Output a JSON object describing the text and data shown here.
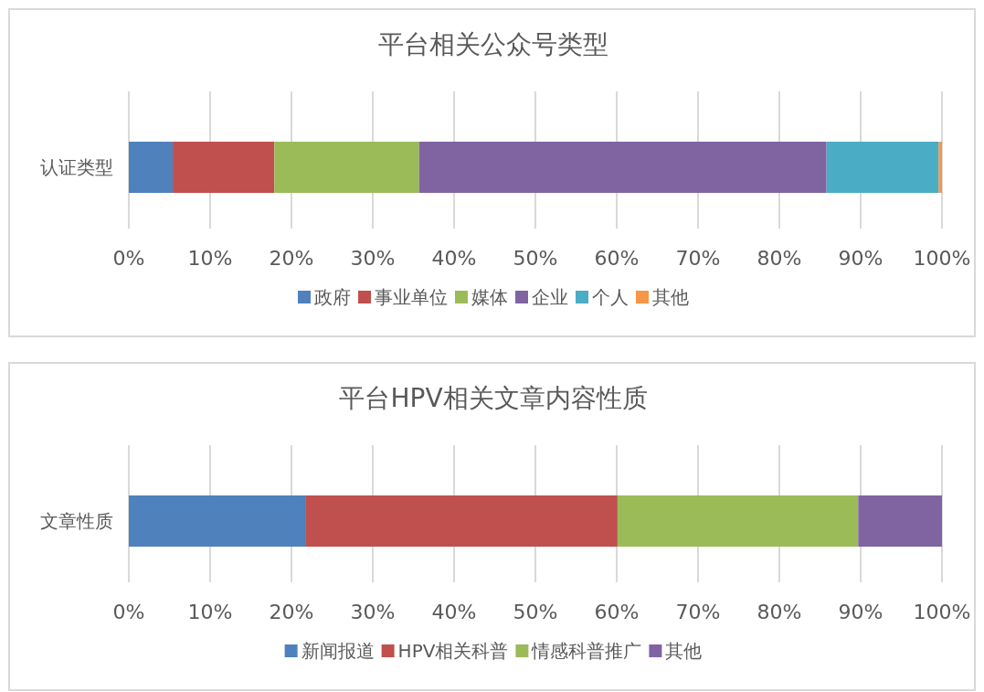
{
  "chart_data": [
    {
      "type": "bar",
      "orientation": "horizontal",
      "stacked": true,
      "title": "平台相关公众号类型",
      "categories": [
        "认证类型"
      ],
      "series": [
        {
          "name": "政府",
          "color": "#4f81bd",
          "values": [
            5.4
          ]
        },
        {
          "name": "事业单位",
          "color": "#c0504d",
          "values": [
            12.5
          ]
        },
        {
          "name": "媒体",
          "color": "#9bbb59",
          "values": [
            17.8
          ]
        },
        {
          "name": "企业",
          "color": "#8064a2",
          "values": [
            50.1
          ]
        },
        {
          "name": "个人",
          "color": "#4bacc6",
          "values": [
            13.8
          ]
        },
        {
          "name": "其他",
          "color": "#f79646",
          "values": [
            0.4
          ]
        }
      ],
      "xlim": [
        0,
        100
      ],
      "xticks": [
        {
          "value": 0,
          "label": "0%"
        },
        {
          "value": 10,
          "label": "10%"
        },
        {
          "value": 20,
          "label": "20%"
        },
        {
          "value": 30,
          "label": "30%"
        },
        {
          "value": 40,
          "label": "40%"
        },
        {
          "value": 50,
          "label": "50%"
        },
        {
          "value": 60,
          "label": "60%"
        },
        {
          "value": 70,
          "label": "70%"
        },
        {
          "value": 80,
          "label": "80%"
        },
        {
          "value": 90,
          "label": "90%"
        },
        {
          "value": 100,
          "label": "100%"
        }
      ],
      "grid": "x",
      "legend": "bottom"
    },
    {
      "type": "bar",
      "orientation": "horizontal",
      "stacked": true,
      "title": "平台HPV相关文章内容性质",
      "categories": [
        "文章性质"
      ],
      "series": [
        {
          "name": "新闻报道",
          "color": "#4f81bd",
          "values": [
            21.7
          ]
        },
        {
          "name": "HPV相关科普",
          "color": "#c0504d",
          "values": [
            38.4
          ]
        },
        {
          "name": "情感科普推广",
          "color": "#9bbb59",
          "values": [
            29.6
          ]
        },
        {
          "name": "其他",
          "color": "#8064a2",
          "values": [
            10.3
          ]
        }
      ],
      "xlim": [
        0,
        100
      ],
      "xticks": [
        {
          "value": 0,
          "label": "0%"
        },
        {
          "value": 10,
          "label": "10%"
        },
        {
          "value": 20,
          "label": "20%"
        },
        {
          "value": 30,
          "label": "30%"
        },
        {
          "value": 40,
          "label": "40%"
        },
        {
          "value": 50,
          "label": "50%"
        },
        {
          "value": 60,
          "label": "60%"
        },
        {
          "value": 70,
          "label": "70%"
        },
        {
          "value": 80,
          "label": "80%"
        },
        {
          "value": 90,
          "label": "90%"
        },
        {
          "value": 100,
          "label": "100%"
        }
      ],
      "grid": "x",
      "legend": "bottom"
    }
  ]
}
